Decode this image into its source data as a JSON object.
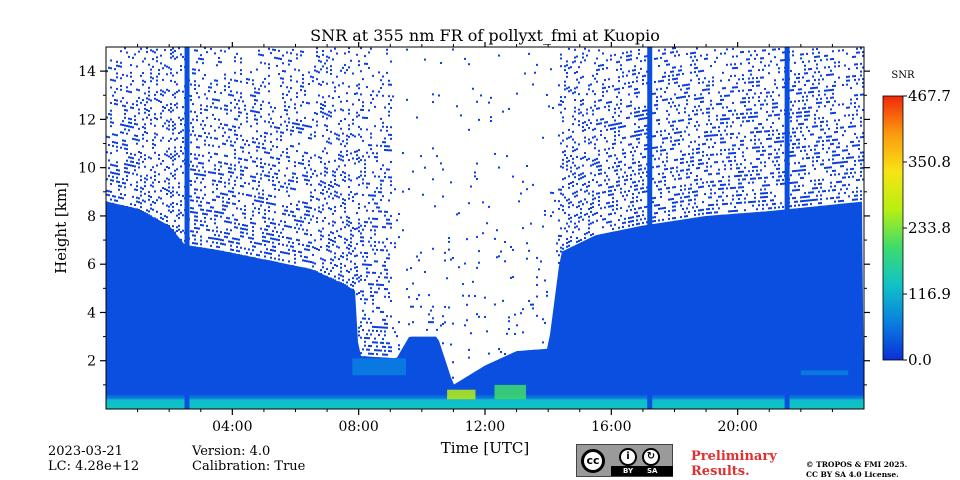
{
  "chart_data": {
    "type": "heatmap",
    "title": "SNR at 355 nm FR of pollyxt_fmi at Kuopio",
    "xlabel": "Time [UTC]",
    "ylabel": "Height [km]",
    "xlim_hours": [
      0,
      24
    ],
    "ylim_km": [
      0,
      15
    ],
    "x_ticks": [
      {
        "value": 4,
        "label": "04:00"
      },
      {
        "value": 8,
        "label": "08:00"
      },
      {
        "value": 12,
        "label": "12:00"
      },
      {
        "value": 16,
        "label": "16:00"
      },
      {
        "value": 20,
        "label": "20:00"
      }
    ],
    "y_ticks": [
      {
        "value": 2,
        "label": "2"
      },
      {
        "value": 4,
        "label": "4"
      },
      {
        "value": 6,
        "label": "6"
      },
      {
        "value": 8,
        "label": "8"
      },
      {
        "value": 10,
        "label": "10"
      },
      {
        "value": 12,
        "label": "12"
      },
      {
        "value": 14,
        "label": "14"
      }
    ],
    "colorbar": {
      "label": "SNR",
      "min": 0.0,
      "max": 467.7,
      "ticks": [
        {
          "value": 0.0,
          "label": "0.0"
        },
        {
          "value": 116.9,
          "label": "116.9"
        },
        {
          "value": 233.8,
          "label": "233.8"
        },
        {
          "value": 350.8,
          "label": "350.8"
        },
        {
          "value": 467.7,
          "label": "467.7"
        }
      ],
      "colors": [
        "#0b2fd6",
        "#0a7fe0",
        "#11c2c7",
        "#3edc6a",
        "#b8ef12",
        "#f7e414",
        "#fb9a0e",
        "#f0280a"
      ]
    },
    "signal_top_km": [
      {
        "t": 0.0,
        "h": 8.6
      },
      {
        "t": 1.0,
        "h": 8.3
      },
      {
        "t": 2.0,
        "h": 7.6
      },
      {
        "t": 2.5,
        "h": 6.8
      },
      {
        "t": 3.5,
        "h": 6.6
      },
      {
        "t": 5.0,
        "h": 6.2
      },
      {
        "t": 6.5,
        "h": 5.8
      },
      {
        "t": 7.5,
        "h": 5.2
      },
      {
        "t": 7.9,
        "h": 4.9
      },
      {
        "t": 8.0,
        "h": 2.2
      },
      {
        "t": 9.2,
        "h": 2.1
      },
      {
        "t": 9.6,
        "h": 3.0
      },
      {
        "t": 10.5,
        "h": 3.0
      },
      {
        "t": 11.0,
        "h": 1.0
      },
      {
        "t": 12.0,
        "h": 1.8
      },
      {
        "t": 13.0,
        "h": 2.4
      },
      {
        "t": 14.0,
        "h": 2.5
      },
      {
        "t": 14.4,
        "h": 6.5
      },
      {
        "t": 15.5,
        "h": 7.2
      },
      {
        "t": 17.0,
        "h": 7.6
      },
      {
        "t": 19.0,
        "h": 8.0
      },
      {
        "t": 21.0,
        "h": 8.2
      },
      {
        "t": 22.5,
        "h": 8.4
      },
      {
        "t": 24.0,
        "h": 8.6
      }
    ],
    "missing_data_hours": [
      2.55,
      17.2,
      21.55
    ],
    "high_snr_patches": [
      {
        "t0": 0.0,
        "t1": 24.0,
        "h0": 0.0,
        "h1": 0.4,
        "snr": 150
      },
      {
        "t0": 10.8,
        "t1": 11.7,
        "h0": 0.4,
        "h1": 0.8,
        "snr": 260
      },
      {
        "t0": 12.3,
        "t1": 13.3,
        "h0": 0.4,
        "h1": 1.0,
        "snr": 210
      },
      {
        "t0": 7.8,
        "t1": 9.5,
        "h0": 1.4,
        "h1": 2.1,
        "snr": 90
      },
      {
        "t0": 22.0,
        "t1": 23.5,
        "h0": 1.4,
        "h1": 1.6,
        "snr": 70
      }
    ]
  },
  "footer": {
    "date": "2023-03-21",
    "lc": "LC: 4.28e+12",
    "version": "Version: 4.0",
    "calibration": "Calibration: True",
    "preliminary_line1": "Preliminary",
    "preliminary_line2": "Results.",
    "copyright_line1": "© TROPOS & FMI 2025.",
    "copyright_line2": "CC BY SA 4.0 License."
  },
  "license_badge": {
    "cc": "cc",
    "by": "BY",
    "sa": "SA"
  }
}
